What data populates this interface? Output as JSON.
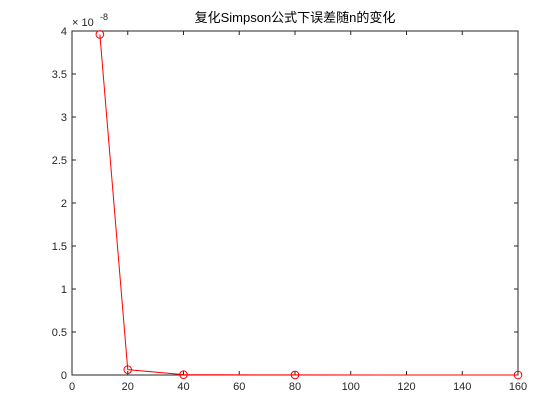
{
  "chart_data": {
    "type": "line",
    "title": "复化Simpson公式下误差随n的变化",
    "xlabel": "",
    "ylabel": "",
    "x": [
      10,
      20,
      40,
      80,
      160
    ],
    "series": [
      {
        "values": [
          3.96e-08,
          6.2e-10,
          4e-11,
          1e-11,
          0.0
        ]
      }
    ],
    "xlim": [
      0,
      160
    ],
    "ylim": [
      0,
      4e-08
    ],
    "x_ticks": [
      "0",
      "20",
      "40",
      "60",
      "80",
      "100",
      "120",
      "140",
      "160"
    ],
    "y_ticks": [
      "0",
      "0.5",
      "1",
      "1.5",
      "2",
      "2.5",
      "3",
      "3.5",
      "4"
    ],
    "y_exponent_label": "× 10",
    "y_exponent": "-8",
    "line_color": "#ff0000",
    "marker": "circle",
    "grid": false
  }
}
